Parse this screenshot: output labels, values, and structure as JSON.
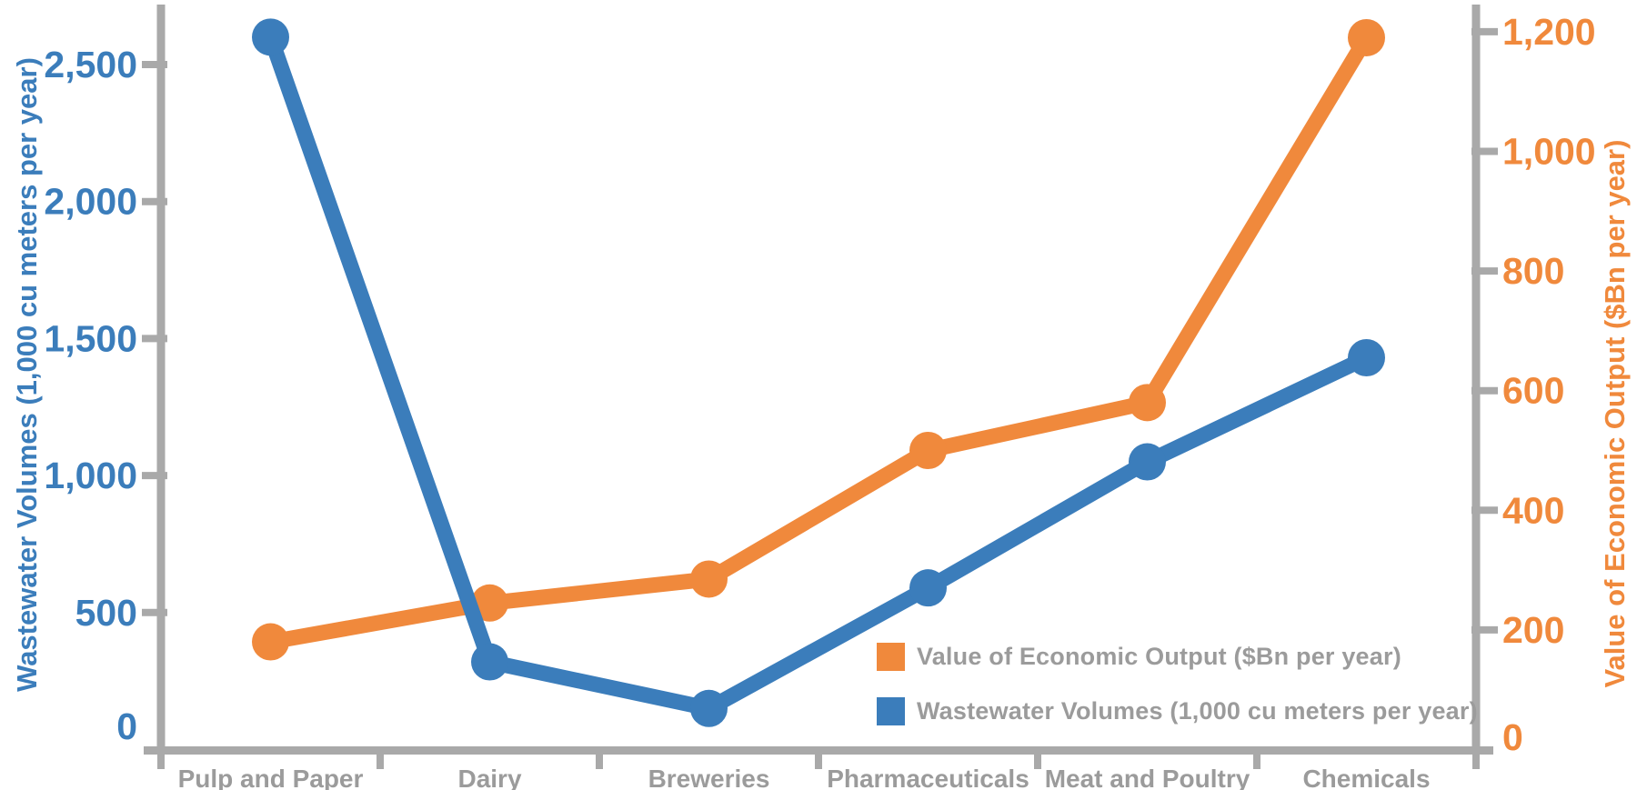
{
  "chart_data": {
    "type": "line",
    "title": "",
    "categories": [
      "Pulp and Paper",
      "Dairy",
      "Breweries",
      "Pharmaceuticals",
      "Meat and Poultry",
      "Chemicals"
    ],
    "series": [
      {
        "name": "Value of Economic Output ($Bn per year)",
        "axis": "right",
        "color": "#F0893C",
        "values": [
          180,
          245,
          285,
          500,
          580,
          1190
        ]
      },
      {
        "name": "Wastewater Volumes (1,000 cu meters per year)",
        "axis": "left",
        "color": "#3B7DBB",
        "values": [
          2600,
          320,
          150,
          590,
          1050,
          1430
        ]
      }
    ],
    "left_axis": {
      "label": "Wastewater Volumes (1,000 cu meters per year)",
      "color": "#3B7DBB",
      "tick_values": [
        0,
        500,
        1000,
        1500,
        2000,
        2500
      ],
      "range": [
        0,
        2720
      ]
    },
    "right_axis": {
      "label": "Value of Economic Output ($Bn per year)",
      "color": "#F0893C",
      "tick_values": [
        0,
        200,
        400,
        600,
        800,
        1000,
        1200
      ],
      "range": [
        0,
        1245
      ]
    },
    "grid": false,
    "legend_position": "inside-bottom-right"
  },
  "colors": {
    "background": "#FFFFFF",
    "axis_line": "#A9A9A9",
    "category_label": "#9B9B9B",
    "legend_text": "#9B9B9B"
  }
}
